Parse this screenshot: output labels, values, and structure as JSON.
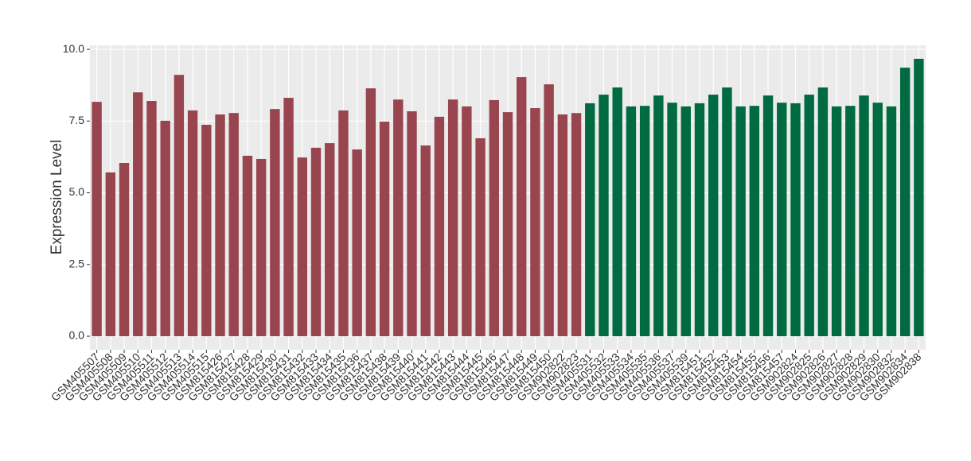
{
  "chart_data": {
    "type": "bar",
    "y_label": "Expression Level",
    "categories": [
      "GSM405507",
      "GSM405508",
      "GSM405509",
      "GSM405510",
      "GSM405511",
      "GSM405512",
      "GSM405513",
      "GSM405514",
      "GSM405515",
      "GSM815426",
      "GSM815427",
      "GSM815428",
      "GSM815429",
      "GSM815430",
      "GSM815431",
      "GSM815432",
      "GSM815433",
      "GSM815434",
      "GSM815435",
      "GSM815436",
      "GSM815437",
      "GSM815438",
      "GSM815439",
      "GSM815440",
      "GSM815441",
      "GSM815442",
      "GSM815443",
      "GSM815444",
      "GSM815445",
      "GSM815446",
      "GSM815447",
      "GSM815448",
      "GSM815449",
      "GSM815450",
      "GSM902822",
      "GSM902823",
      "GSM405531",
      "GSM405532",
      "GSM405533",
      "GSM405534",
      "GSM405535",
      "GSM405536",
      "GSM405537",
      "GSM405539",
      "GSM815451",
      "GSM815452",
      "GSM815453",
      "GSM815454",
      "GSM815455",
      "GSM815456",
      "GSM815457",
      "GSM902824",
      "GSM902825",
      "GSM902826",
      "GSM902827",
      "GSM902828",
      "GSM902829",
      "GSM902830",
      "GSM902832",
      "GSM902834",
      "GSM902838"
    ],
    "values": [
      8.17,
      5.71,
      6.04,
      8.5,
      8.2,
      7.51,
      9.11,
      7.87,
      7.37,
      7.73,
      7.78,
      6.29,
      6.18,
      7.92,
      8.31,
      6.23,
      6.57,
      6.73,
      7.87,
      6.51,
      8.64,
      7.48,
      8.25,
      7.84,
      6.65,
      7.65,
      8.25,
      8.01,
      6.9,
      8.23,
      7.81,
      9.03,
      7.95,
      8.78,
      7.73,
      7.78,
      8.12,
      8.42,
      8.67,
      8.01,
      8.03,
      8.39,
      8.14,
      8.01,
      8.12,
      8.42,
      8.67,
      8.01,
      8.03,
      8.39,
      8.14,
      8.12,
      8.42,
      8.67,
      8.01,
      8.03,
      8.39,
      8.14,
      8.01,
      9.36,
      9.67
    ],
    "colors": [
      "#984550",
      "#984550",
      "#984550",
      "#984550",
      "#984550",
      "#984550",
      "#984550",
      "#984550",
      "#984550",
      "#984550",
      "#984550",
      "#984550",
      "#984550",
      "#984550",
      "#984550",
      "#984550",
      "#984550",
      "#984550",
      "#984550",
      "#984550",
      "#984550",
      "#984550",
      "#984550",
      "#984550",
      "#984550",
      "#984550",
      "#984550",
      "#984550",
      "#984550",
      "#984550",
      "#984550",
      "#984550",
      "#984550",
      "#984550",
      "#984550",
      "#984550",
      "#006a41",
      "#006a41",
      "#006a41",
      "#006a41",
      "#006a41",
      "#006a41",
      "#006a41",
      "#006a41",
      "#006a41",
      "#006a41",
      "#006a41",
      "#006a41",
      "#006a41",
      "#006a41",
      "#006a41",
      "#006a41",
      "#006a41",
      "#006a41",
      "#006a41",
      "#006a41",
      "#006a41",
      "#006a41",
      "#006a41",
      "#006a41",
      "#006a41"
    ],
    "ylim": [
      -0.47,
      10.14
    ],
    "yticks": [
      {
        "value": 0,
        "label": "0.0"
      },
      2.5,
      {
        "value": 5,
        "label": "5.0"
      },
      7.5,
      {
        "value": 10,
        "label": "10.0"
      }
    ],
    "grid": true
  }
}
